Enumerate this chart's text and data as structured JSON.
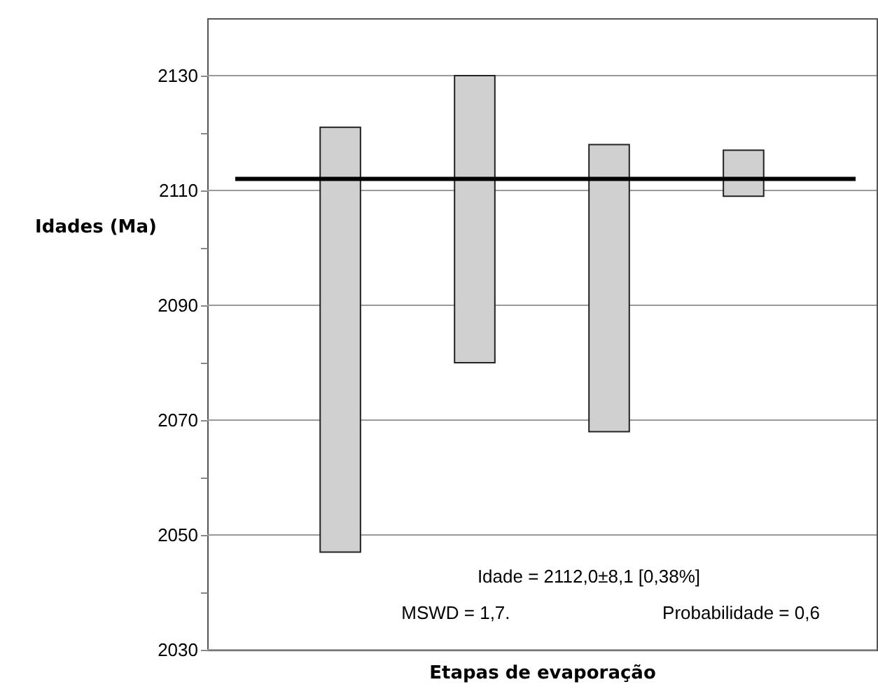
{
  "chart_data": {
    "type": "bar",
    "xlabel": "Etapas de evaporação",
    "ylabel": "Idades (Ma)",
    "categories": [
      null,
      null,
      null,
      null
    ],
    "base": [
      2047,
      2080,
      2068,
      2109
    ],
    "values": [
      74,
      50,
      50,
      8
    ],
    "color": "#d0d0d0",
    "ylim": [
      2030,
      2140
    ],
    "yticks": [
      2030,
      {
        "value": 2040,
        "label": null
      },
      2050,
      {
        "value": 2060,
        "label": null
      },
      2070,
      {
        "value": 2080,
        "label": null
      },
      2090,
      {
        "value": 2100,
        "label": null
      },
      2110,
      {
        "value": 2120,
        "label": null
      },
      2130
    ],
    "grid": "y",
    "ref_lines": [
      {
        "axis": "y",
        "value": 2112,
        "label": null,
        "color": "#000000"
      }
    ],
    "annotations": [
      "Idade = 2112,0±8,1  [0,38%]",
      "MSWD = 1,7.",
      "Probabilidade = 0,6"
    ]
  }
}
